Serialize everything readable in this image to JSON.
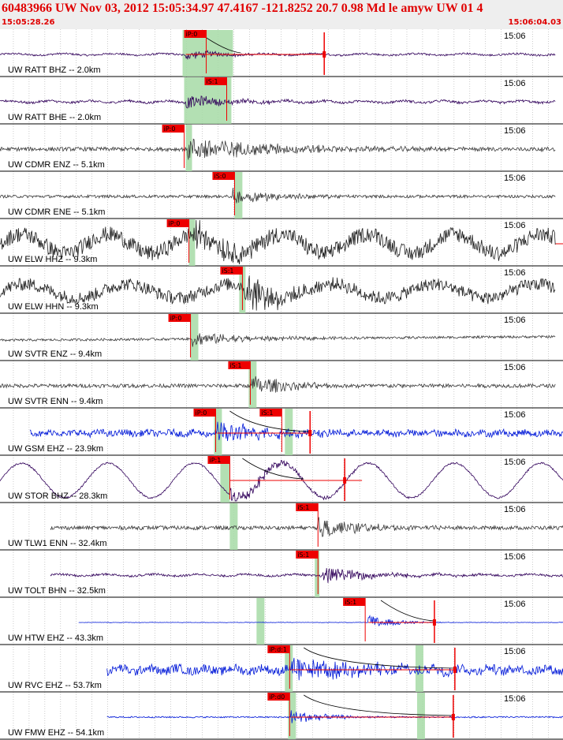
{
  "header": {
    "title": "60483966 UW Nov 03, 2012 15:05:34.97   47.4167 -121.8252 20.7 0.98 Md le amyw UW 01   4",
    "time_start": "15:05:28.26",
    "time_end": "15:06:04.03"
  },
  "colors": {
    "pick": "#ee0000",
    "model": "#a6dba6",
    "black": "#202020",
    "blue": "#0018d8",
    "purple": "#30005a",
    "grey": "#3c3c3c",
    "grid": "#000000"
  },
  "chart_data": {
    "type": "line",
    "x_unit": "seconds after 15:05:28.26",
    "xlim": [
      0,
      35.77
    ],
    "minute_tick_label": "15:06",
    "traces": [
      {
        "label": "UW RATT BHZ -- 2.0km",
        "color": "purple",
        "start": 0.0,
        "end": 35.3,
        "amp": 4,
        "noise": 0.3,
        "lp_amp": 0.25,
        "lp_period": 3.2,
        "pick": {
          "label": "iP:0",
          "t": 11.7
        },
        "event": 11.8,
        "event_amp": 1.0,
        "decay": 2.2,
        "model": [
          11.6,
          14.8
        ],
        "flags": [
          20.6
        ],
        "coda_end": 20.6,
        "envelope_end": 15.3
      },
      {
        "label": "UW RATT BHE -- 2.0km",
        "color": "purple",
        "start": 0.0,
        "end": 35.3,
        "amp": 5,
        "noise": 0.3,
        "lp_amp": 0.25,
        "lp_period": 2.5,
        "pick": {
          "label": "iS:1",
          "t": 13.0
        },
        "event": 11.8,
        "event_amp": 1.0,
        "decay": 3.0,
        "model": [
          11.7,
          14.7
        ],
        "flags": []
      },
      {
        "label": "UW CDMR ENZ -- 5.1km",
        "color": "grey",
        "start": 0.0,
        "end": 35.3,
        "amp": 10,
        "noise": 0.25,
        "lp_amp": 0.0,
        "lp_period": 3.0,
        "pick": {
          "label": "iP:0",
          "t": 10.3
        },
        "event": 11.9,
        "event_amp": 1.0,
        "decay": 5.5,
        "model": [
          11.8,
          12.2
        ],
        "flags": []
      },
      {
        "label": "UW CDMR ENE -- 5.1km",
        "color": "grey",
        "start": 0.0,
        "end": 35.3,
        "amp": 6,
        "noise": 0.3,
        "lp_amp": 0.0,
        "lp_period": 3.0,
        "pick": {
          "label": "iS:0",
          "t": 13.5
        },
        "event": 14.8,
        "event_amp": 1.0,
        "decay": 3.0,
        "model": [
          14.9,
          15.4
        ],
        "flags": []
      },
      {
        "label": "UW ELW HHZ -- 9.3km",
        "color": "black",
        "start": 0.0,
        "end": 35.3,
        "amp": 22,
        "noise": 0.45,
        "lp_amp": 0.55,
        "lp_period": 5.5,
        "pick": {
          "label": "iP:0",
          "t": 10.6
        },
        "event": 12.2,
        "event_amp": 0.5,
        "decay": 3.0,
        "model": [
          12.0,
          12.4
        ],
        "flags": [],
        "tail_end": 42.0
      },
      {
        "label": "UW ELW HHN -- 9.3km",
        "color": "black",
        "start": 0.0,
        "end": 35.3,
        "amp": 16,
        "noise": 0.5,
        "lp_amp": 0.55,
        "lp_period": 6.5,
        "pick": {
          "label": "iS:1",
          "t": 14.0
        },
        "event": 15.5,
        "event_amp": 1.0,
        "decay": 2.0,
        "model": [
          15.2,
          15.6
        ],
        "flags": []
      },
      {
        "label": "UW SVTR ENZ -- 9.4km",
        "color": "grey",
        "start": 0.0,
        "end": 35.3,
        "amp": 6,
        "noise": 0.25,
        "lp_amp": 0.0,
        "lp_period": 3.0,
        "drift": 0.75,
        "pick": {
          "label": "iP:0",
          "t": 10.7
        },
        "event": 12.2,
        "event_amp": 1.0,
        "decay": 3.5,
        "model": [
          12.1,
          12.6
        ],
        "flags": []
      },
      {
        "label": "UW SVTR ENN -- 9.4km",
        "color": "grey",
        "start": 0.0,
        "end": 35.3,
        "amp": 8,
        "noise": 0.3,
        "lp_amp": 0.0,
        "lp_period": 3.0,
        "pick": {
          "label": "iS:1",
          "t": 14.5
        },
        "event": 16.0,
        "event_amp": 1.0,
        "decay": 2.5,
        "model": [
          15.8,
          16.3
        ],
        "flags": []
      },
      {
        "label": "UW GSM EHZ -- 23.9km",
        "color": "blue",
        "start": 1.9,
        "end": 37.0,
        "amp": 9,
        "noise": 0.45,
        "lp_amp": 0.15,
        "lp_period": 1.5,
        "pick": {
          "label": "iP:0",
          "t": 12.3
        },
        "pick2": {
          "label": "iS:1",
          "t": 16.5
        },
        "event": 13.8,
        "event_amp": 1.0,
        "decay": 3.0,
        "model": [
          13.6,
          14.1
        ],
        "model2": [
          18.1,
          18.6
        ],
        "flags": [
          19.7
        ],
        "coda_end": 19.7,
        "envelope_end": 19.7
      },
      {
        "label": "UW STOR BHZ -- 28.3km",
        "color": "purple",
        "start": 0.0,
        "end": 37.6,
        "amp": 22,
        "noise": 0.05,
        "lp_amp": 1.0,
        "lp_period": 5.5,
        "pick": {
          "label": "iP:1",
          "t": 13.2
        },
        "event": 14.6,
        "event_amp": 0.35,
        "decay": 3.0,
        "model": [
          14.0,
          14.6
        ],
        "flags": [
          21.9
        ],
        "coda_end": 23.0,
        "envelope_end": 19.3
      },
      {
        "label": "UW TLW1 ENN -- 32.4km",
        "color": "grey",
        "start": 3.2,
        "end": 38.0,
        "amp": 8,
        "noise": 0.3,
        "lp_amp": 0.0,
        "lp_period": 3.0,
        "pick": {
          "label": "iS:1",
          "t": 18.8
        },
        "event": 20.2,
        "event_amp": 1.0,
        "decay": 2.8,
        "model": [
          14.6,
          15.1
        ],
        "flags": []
      },
      {
        "label": "UW TOLT BHN -- 32.5km",
        "color": "purple",
        "start": 3.2,
        "end": 38.3,
        "amp": 7,
        "noise": 0.2,
        "lp_amp": 0.15,
        "lp_period": 3.0,
        "pick": {
          "label": "iS:1",
          "t": 18.8
        },
        "event": 20.5,
        "event_amp": 1.0,
        "decay": 3.0,
        "model": [
          20.0,
          20.3
        ],
        "flags": []
      },
      {
        "label": "UW HTW EHZ -- 43.3km",
        "color": "blue",
        "start": 5.0,
        "end": 40.0,
        "amp": 6,
        "noise": 0.05,
        "lp_amp": 0.0,
        "lp_period": 3.0,
        "pick": {
          "label": "iS:1",
          "t": 21.8
        },
        "event": 23.4,
        "event_amp": 1.0,
        "decay": 1.6,
        "model": [
          16.3,
          16.8
        ],
        "flags": [
          27.6
        ],
        "coda_end": 27.6,
        "envelope_end": 27.6
      },
      {
        "label": "UW RVC EHZ -- 53.7km",
        "color": "blue",
        "start": 6.8,
        "end": 40.0,
        "amp": 12,
        "noise": 0.45,
        "lp_amp": 0.2,
        "lp_period": 1.8,
        "pick": {
          "label": "iP:d:1",
          "t": 17.0
        },
        "event": 18.5,
        "event_amp": 0.7,
        "decay": 5.0,
        "model": [
          18.1,
          18.6
        ],
        "model2": [
          26.4,
          26.9
        ],
        "flags": [
          28.9
        ],
        "coda_end": 28.9,
        "envelope_end": 28.9
      },
      {
        "label": "UW FMW EHZ -- 54.1km",
        "color": "blue",
        "start": 6.8,
        "end": 40.0,
        "amp": 6,
        "noise": 0.15,
        "lp_amp": 0.0,
        "lp_period": 3.0,
        "pick": {
          "label": "iP:d0",
          "t": 17.0
        },
        "event": 18.5,
        "event_amp": 1.0,
        "decay": 2.0,
        "model": [
          18.3,
          18.8
        ],
        "model2": [
          26.5,
          27.0
        ],
        "flags": [
          28.8
        ],
        "coda_end": 28.8,
        "envelope_end": 28.8
      }
    ]
  }
}
